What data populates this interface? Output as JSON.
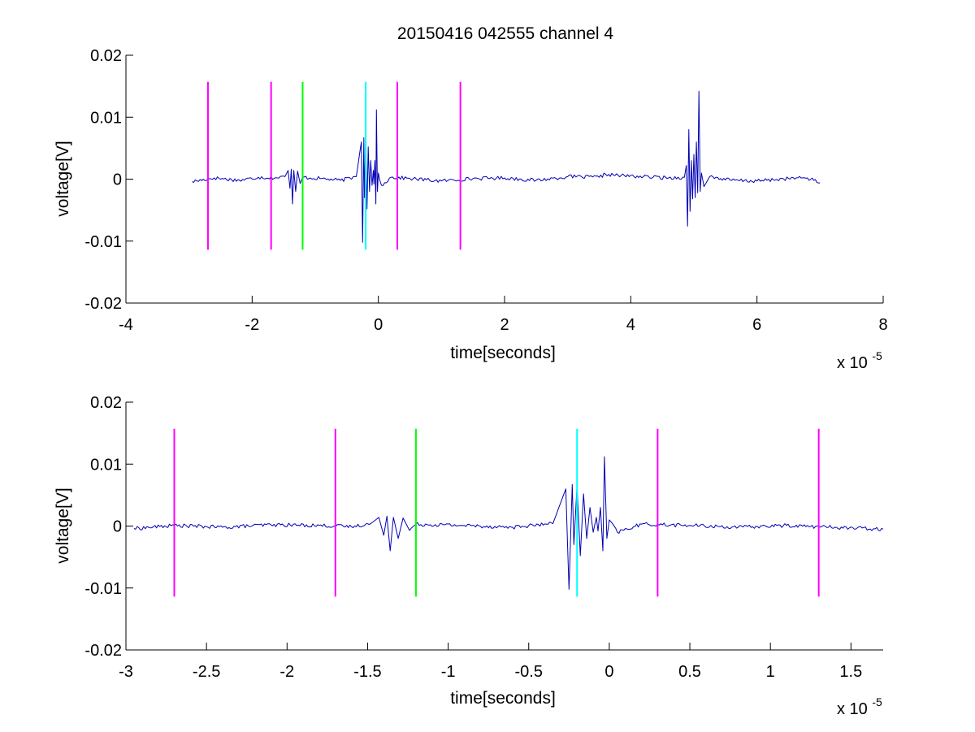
{
  "chart_data": [
    {
      "type": "line",
      "title": "20150416 042555 channel 4",
      "xlabel": "time[seconds]",
      "ylabel": "voltage[V]",
      "x_exponent_label": "x 10",
      "x_exponent": "-5",
      "xlim": [
        -4,
        8
      ],
      "ylim": [
        -0.02,
        0.02
      ],
      "xticks": [
        -4,
        -2,
        0,
        2,
        4,
        6,
        8
      ],
      "xtick_labels": [
        "-4",
        "-2",
        "0",
        "2",
        "4",
        "6",
        "8"
      ],
      "yticks": [
        -0.02,
        -0.01,
        0,
        0.01,
        0.02
      ],
      "ytick_labels": [
        "-0.02",
        "-0.01",
        "0",
        "0.01",
        "0.02"
      ],
      "grid": false,
      "signal_color": "#0000b4",
      "signal_points": [
        [
          -2.95,
          -0.0004
        ],
        [
          -2.6,
          0.0002
        ],
        [
          -2.2,
          -0.0002
        ],
        [
          -1.9,
          0.0003
        ],
        [
          -1.6,
          0.0002
        ],
        [
          -1.48,
          0.0004
        ],
        [
          -1.43,
          0.0014
        ],
        [
          -1.4,
          -0.0015
        ],
        [
          -1.38,
          0.0016
        ],
        [
          -1.36,
          -0.004
        ],
        [
          -1.34,
          0.0014
        ],
        [
          -1.31,
          -0.002
        ],
        [
          -1.28,
          0.0013
        ],
        [
          -1.24,
          -0.0007
        ],
        [
          -1.2,
          0.0003
        ],
        [
          -0.9,
          0.0001
        ],
        [
          -0.6,
          -0.0002
        ],
        [
          -0.35,
          0.0004
        ],
        [
          -0.27,
          0.006
        ],
        [
          -0.25,
          -0.0102
        ],
        [
          -0.23,
          0.0067
        ],
        [
          -0.22,
          -0.003
        ],
        [
          -0.2,
          0.0066
        ],
        [
          -0.18,
          -0.0048
        ],
        [
          -0.16,
          0.0052
        ],
        [
          -0.14,
          -0.002
        ],
        [
          -0.12,
          0.003
        ],
        [
          -0.1,
          -0.001
        ],
        [
          -0.08,
          0.0014
        ],
        [
          -0.07,
          -0.0008
        ],
        [
          -0.055,
          0.003
        ],
        [
          -0.04,
          -0.004
        ],
        [
          -0.03,
          0.0112
        ],
        [
          -0.015,
          -0.002
        ],
        [
          0.0,
          0.001
        ],
        [
          0.05,
          -0.001
        ],
        [
          0.2,
          0.0003
        ],
        [
          0.5,
          0.0001
        ],
        [
          1.0,
          -0.0003
        ],
        [
          1.5,
          0.0001
        ],
        [
          2.0,
          0.0002
        ],
        [
          2.5,
          -0.0002
        ],
        [
          3.0,
          0.0004
        ],
        [
          3.5,
          0.0003
        ],
        [
          3.6,
          0.0008
        ],
        [
          3.8,
          0.0006
        ],
        [
          4.2,
          0.0004
        ],
        [
          4.6,
          0.0002
        ],
        [
          4.85,
          0.0003
        ],
        [
          4.88,
          0.0022
        ],
        [
          4.9,
          -0.0076
        ],
        [
          4.92,
          0.008
        ],
        [
          4.94,
          -0.0052
        ],
        [
          4.96,
          0.003
        ],
        [
          4.98,
          -0.0032
        ],
        [
          5.0,
          0.004
        ],
        [
          5.02,
          -0.003
        ],
        [
          5.04,
          0.006
        ],
        [
          5.06,
          -0.0022
        ],
        [
          5.08,
          0.0142
        ],
        [
          5.1,
          -0.002
        ],
        [
          5.12,
          0.001
        ],
        [
          5.16,
          -0.0012
        ],
        [
          5.25,
          0.0004
        ],
        [
          5.6,
          -0.0002
        ],
        [
          6.0,
          -0.0003
        ],
        [
          6.5,
          0.0001
        ],
        [
          6.8,
          0.0002
        ],
        [
          7.0,
          -0.0006
        ]
      ],
      "noise_amplitude": 0.0003,
      "markers": [
        {
          "x": -2.7,
          "color": "#ff00ff",
          "y0": -0.0114,
          "y1": 0.0157
        },
        {
          "x": -1.7,
          "color": "#ff00ff",
          "y0": -0.0114,
          "y1": 0.0157
        },
        {
          "x": -1.2,
          "color": "#00ff00",
          "y0": -0.0114,
          "y1": 0.0157
        },
        {
          "x": -0.2,
          "color": "#00ffff",
          "y0": -0.0114,
          "y1": 0.0157
        },
        {
          "x": 0.3,
          "color": "#ff00ff",
          "y0": -0.0114,
          "y1": 0.0157
        },
        {
          "x": 1.3,
          "color": "#ff00ff",
          "y0": -0.0114,
          "y1": 0.0157
        }
      ]
    },
    {
      "type": "line",
      "title": "",
      "xlabel": "time[seconds]",
      "ylabel": "voltage[V]",
      "x_exponent_label": "x 10",
      "x_exponent": "-5",
      "xlim": [
        -3.0,
        1.7
      ],
      "ylim": [
        -0.02,
        0.02
      ],
      "xticks": [
        -3,
        -2.5,
        -2,
        -1.5,
        -1,
        -0.5,
        0,
        0.5,
        1,
        1.5
      ],
      "xtick_labels": [
        "-3",
        "-2.5",
        "-2",
        "-1.5",
        "-1",
        "-0.5",
        "0",
        "0.5",
        "1",
        "1.5"
      ],
      "yticks": [
        -0.02,
        -0.01,
        0,
        0.01,
        0.02
      ],
      "ytick_labels": [
        "-0.02",
        "-0.01",
        "0",
        "0.01",
        "0.02"
      ],
      "grid": false,
      "signal_color": "#0000b4",
      "signal_points": [
        [
          -2.95,
          -0.0004
        ],
        [
          -2.7,
          0.0001
        ],
        [
          -2.4,
          -0.0002
        ],
        [
          -2.1,
          0.0002
        ],
        [
          -1.8,
          0.0001
        ],
        [
          -1.6,
          -0.0001
        ],
        [
          -1.48,
          0.0004
        ],
        [
          -1.43,
          0.0014
        ],
        [
          -1.4,
          -0.0015
        ],
        [
          -1.38,
          0.0016
        ],
        [
          -1.36,
          -0.004
        ],
        [
          -1.34,
          0.0014
        ],
        [
          -1.31,
          -0.002
        ],
        [
          -1.28,
          0.0013
        ],
        [
          -1.24,
          -0.0007
        ],
        [
          -1.2,
          0.0003
        ],
        [
          -0.9,
          0.0001
        ],
        [
          -0.6,
          -0.0002
        ],
        [
          -0.35,
          0.0004
        ],
        [
          -0.27,
          0.006
        ],
        [
          -0.25,
          -0.0102
        ],
        [
          -0.23,
          0.0067
        ],
        [
          -0.22,
          -0.003
        ],
        [
          -0.2,
          0.0066
        ],
        [
          -0.18,
          -0.0048
        ],
        [
          -0.16,
          0.0052
        ],
        [
          -0.14,
          -0.002
        ],
        [
          -0.12,
          0.003
        ],
        [
          -0.1,
          -0.001
        ],
        [
          -0.08,
          0.0014
        ],
        [
          -0.07,
          -0.0008
        ],
        [
          -0.055,
          0.003
        ],
        [
          -0.04,
          -0.004
        ],
        [
          -0.03,
          0.0112
        ],
        [
          -0.015,
          -0.002
        ],
        [
          0.0,
          0.001
        ],
        [
          0.05,
          -0.001
        ],
        [
          0.2,
          0.0003
        ],
        [
          0.5,
          0.0001
        ],
        [
          0.8,
          -0.0002
        ],
        [
          1.1,
          0.0001
        ],
        [
          1.4,
          -0.0002
        ],
        [
          1.7,
          -0.0005
        ]
      ],
      "noise_amplitude": 0.0003,
      "markers": [
        {
          "x": -2.7,
          "color": "#ff00ff",
          "y0": -0.0114,
          "y1": 0.0157
        },
        {
          "x": -1.7,
          "color": "#ff00ff",
          "y0": -0.0114,
          "y1": 0.0157
        },
        {
          "x": -1.2,
          "color": "#00ff00",
          "y0": -0.0114,
          "y1": 0.0157
        },
        {
          "x": -0.2,
          "color": "#00ffff",
          "y0": -0.0114,
          "y1": 0.0157
        },
        {
          "x": 0.3,
          "color": "#ff00ff",
          "y0": -0.0114,
          "y1": 0.0157
        },
        {
          "x": 1.3,
          "color": "#ff00ff",
          "y0": -0.0114,
          "y1": 0.0157
        }
      ]
    }
  ]
}
